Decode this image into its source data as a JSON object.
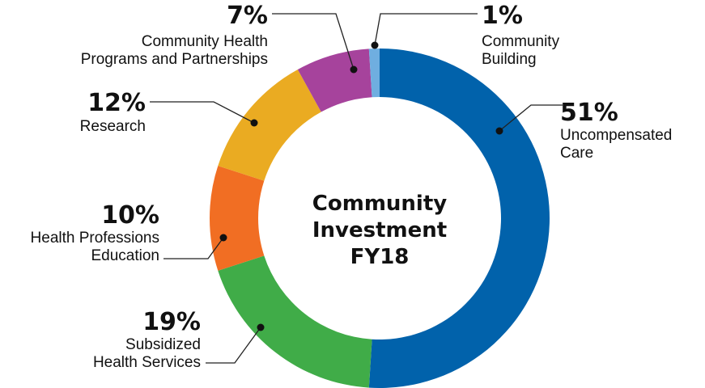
{
  "chart_data": {
    "type": "pie",
    "title": [
      "Community",
      "Investment",
      "FY18"
    ],
    "slices": [
      {
        "label": [
          "Uncompensated",
          "Care"
        ],
        "value": 51,
        "pct_label": "51%",
        "color": "#0162AB"
      },
      {
        "label": [
          "Subsidized",
          "Health Services"
        ],
        "value": 19,
        "pct_label": "19%",
        "color": "#40AC48"
      },
      {
        "label": [
          "Health Professions",
          "Education"
        ],
        "value": 10,
        "pct_label": "10%",
        "color": "#F16E23"
      },
      {
        "label": [
          "Research"
        ],
        "value": 12,
        "pct_label": "12%",
        "color": "#EAAB22"
      },
      {
        "label": [
          "Community Health",
          "Programs and Partnerships"
        ],
        "value": 7,
        "pct_label": "7%",
        "color": "#A6439C"
      },
      {
        "label": [
          "Community",
          "Building"
        ],
        "value": 1,
        "pct_label": "1%",
        "color": "#6FAEE0"
      }
    ]
  }
}
